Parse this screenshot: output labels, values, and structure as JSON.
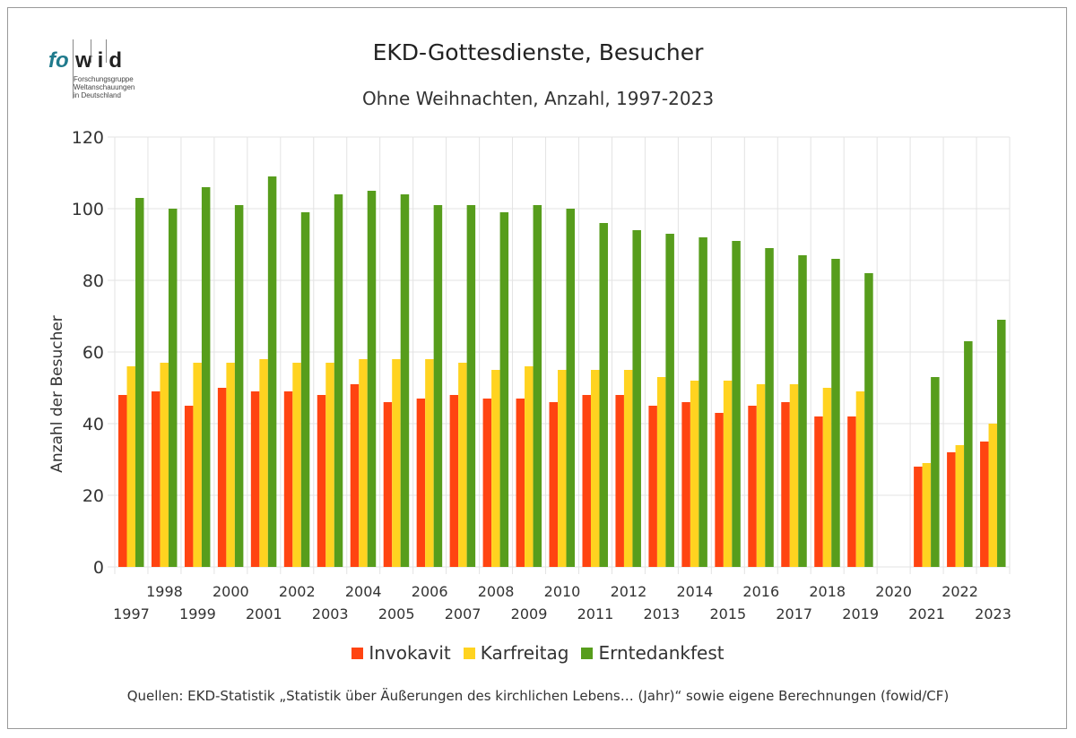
{
  "logo": {
    "part1": "fo",
    "part2": "wid",
    "line1": "Forschungsgruppe",
    "line2": "Weltanschauungen",
    "line3": "in Deutschland"
  },
  "header": {
    "title": "EKD-Gottesdienste, Besucher",
    "subtitle": "Ohne Weihnachten, Anzahl, 1997-2023"
  },
  "source": "Quellen: EKD-Statistik „Statistik über Äußerungen des kirchlichen Lebens… (Jahr)“ sowie eigene Berechnungen (fowid/CF)",
  "chart_data": {
    "type": "bar",
    "title": "EKD-Gottesdienste, Besucher",
    "subtitle": "Ohne Weihnachten, Anzahl, 1997-2023",
    "xlabel": "",
    "ylabel": "Anzahl der Besucher",
    "ylim": [
      0,
      120
    ],
    "yticks": [
      0,
      20,
      40,
      60,
      80,
      100,
      120
    ],
    "grid": true,
    "legend_position": "bottom",
    "categories": [
      "1997",
      "1998",
      "1999",
      "2000",
      "2001",
      "2002",
      "2003",
      "2004",
      "2005",
      "2006",
      "2007",
      "2008",
      "2009",
      "2010",
      "2011",
      "2012",
      "2013",
      "2014",
      "2015",
      "2016",
      "2017",
      "2018",
      "2019",
      "2020",
      "2021",
      "2022",
      "2023"
    ],
    "series": [
      {
        "name": "Invokavit",
        "color": "#ff4411",
        "values": [
          48,
          49,
          45,
          50,
          49,
          49,
          48,
          51,
          46,
          47,
          48,
          47,
          47,
          46,
          48,
          48,
          45,
          46,
          43,
          45,
          46,
          42,
          42,
          null,
          28,
          32,
          35
        ]
      },
      {
        "name": "Karfreitag",
        "color": "#ffd320",
        "values": [
          56,
          57,
          57,
          57,
          58,
          57,
          57,
          58,
          58,
          58,
          57,
          55,
          56,
          55,
          55,
          55,
          53,
          52,
          52,
          51,
          51,
          50,
          49,
          null,
          29,
          34,
          40
        ]
      },
      {
        "name": "Erntedankfest",
        "color": "#579d1c",
        "values": [
          103,
          100,
          106,
          101,
          109,
          99,
          104,
          105,
          104,
          101,
          101,
          99,
          101,
          100,
          96,
          94,
          93,
          92,
          91,
          89,
          87,
          86,
          82,
          null,
          53,
          63,
          69
        ]
      }
    ]
  }
}
